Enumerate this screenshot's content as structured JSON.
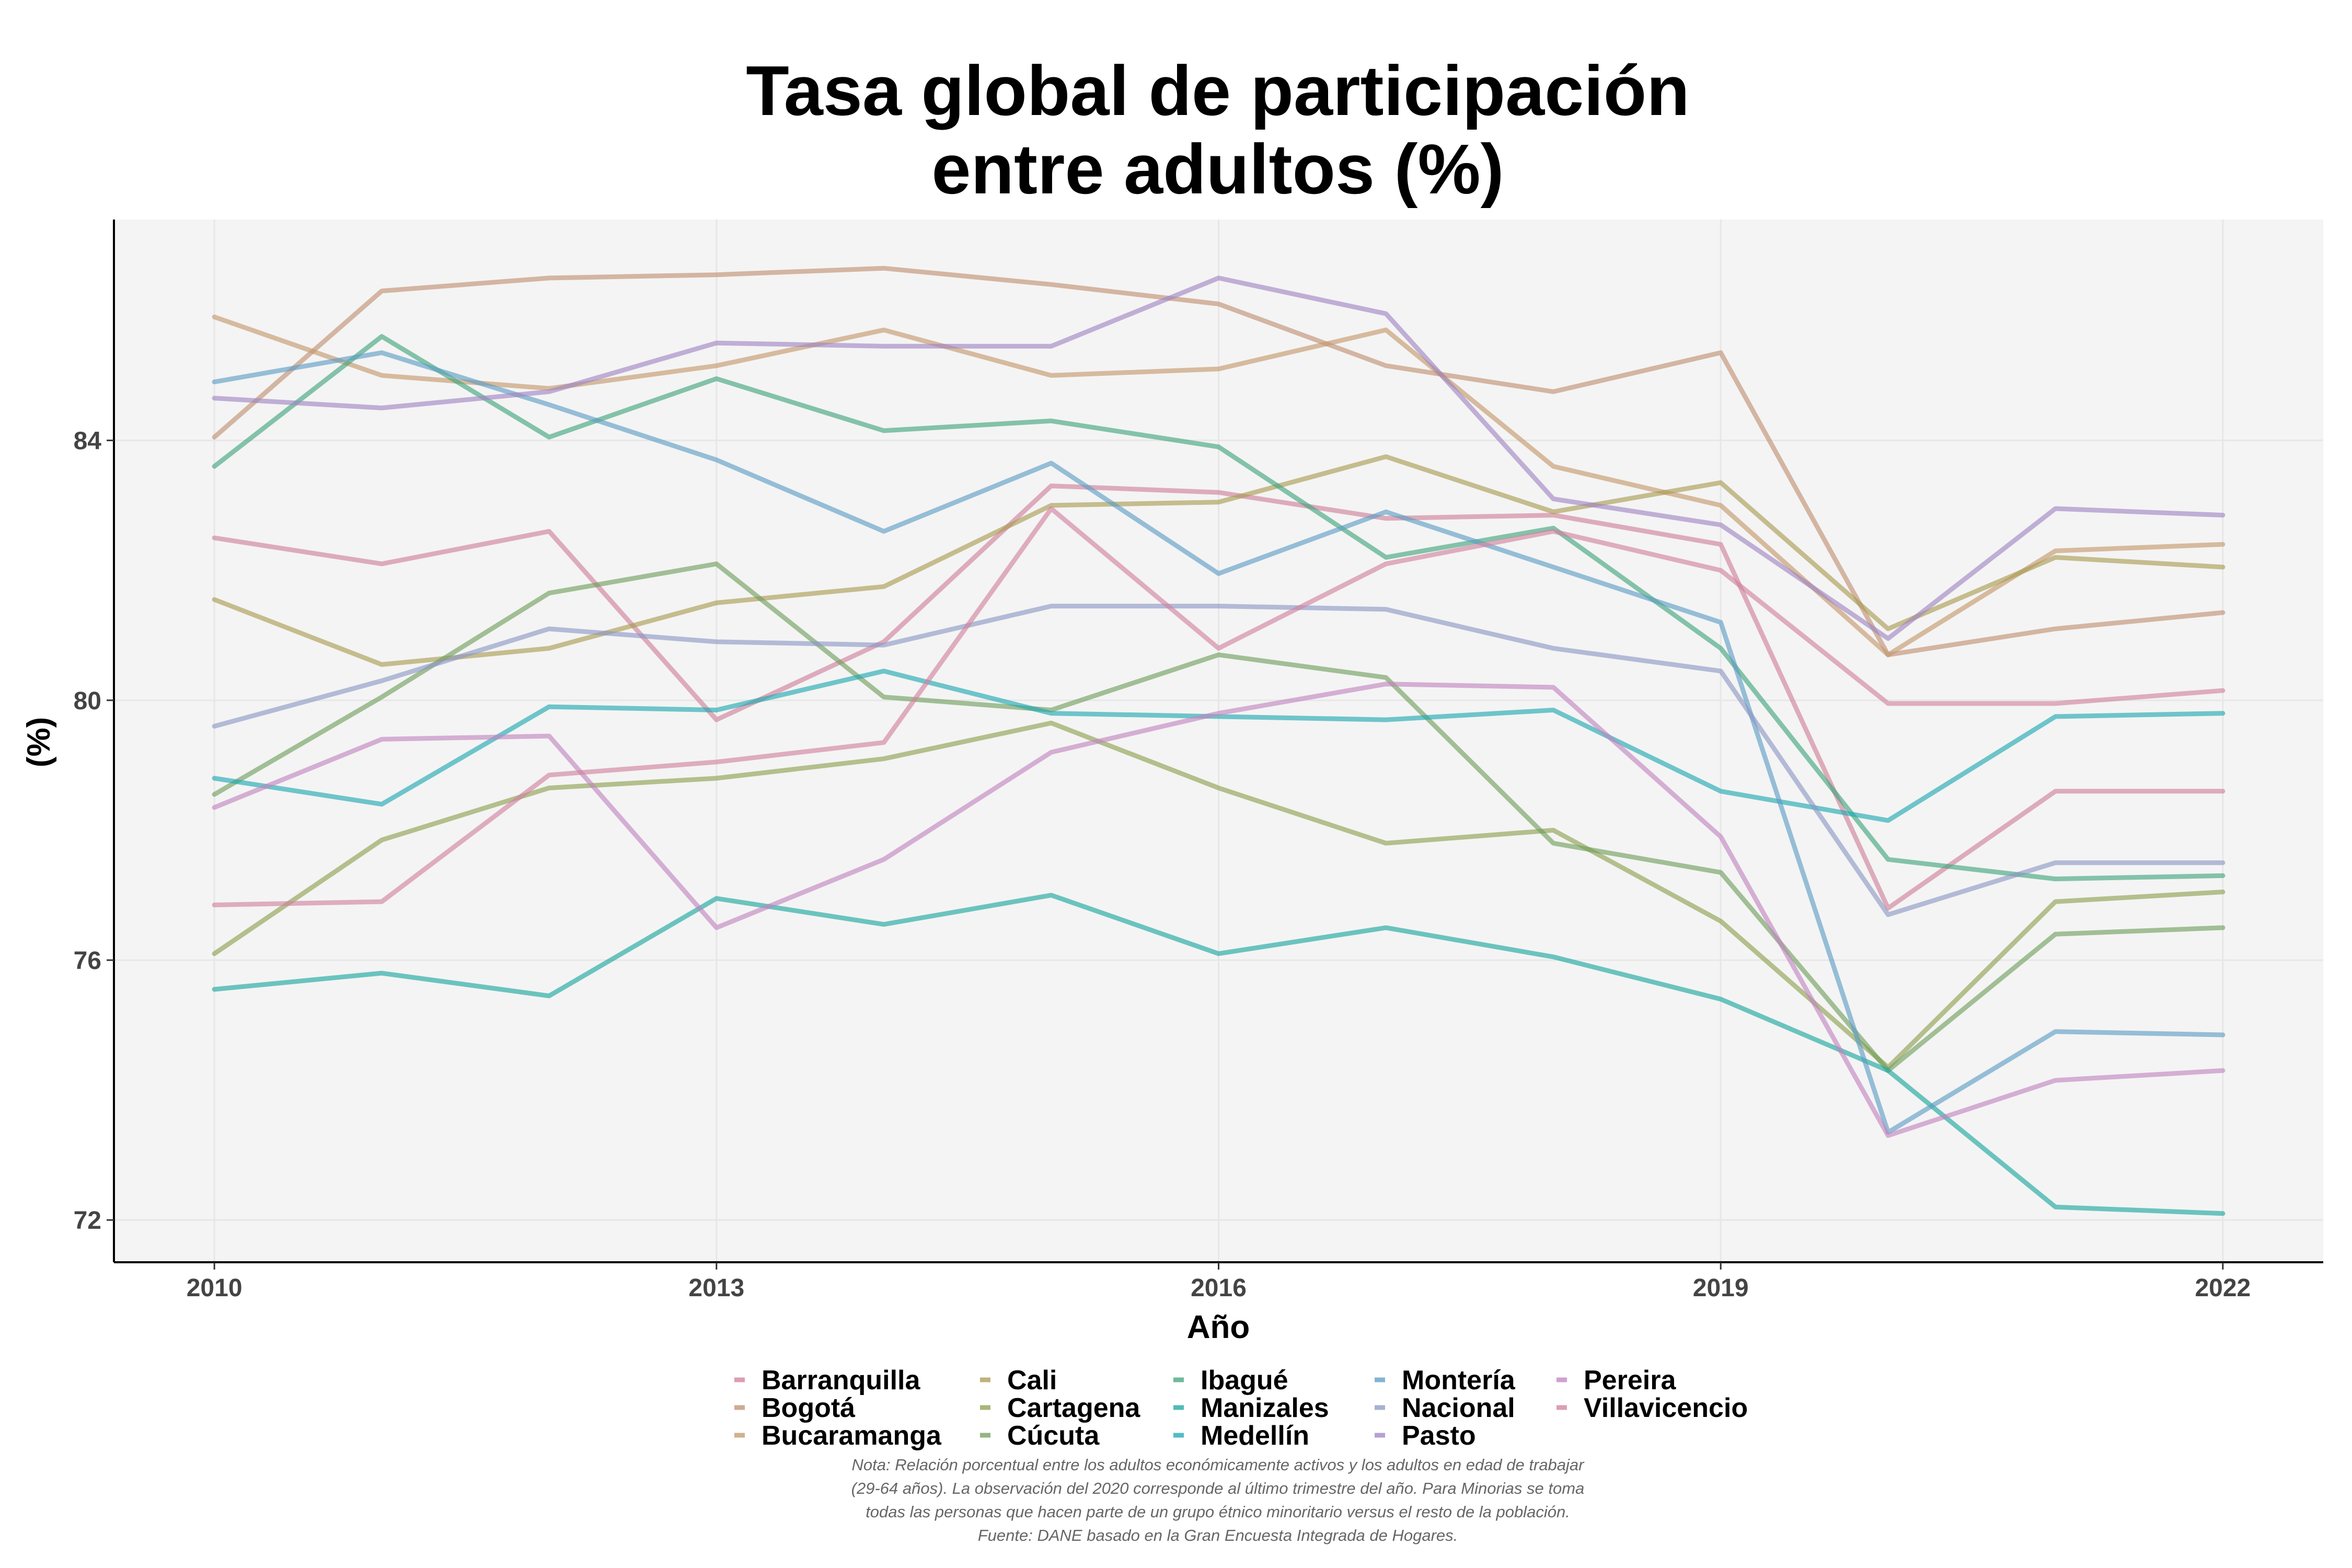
{
  "chart_data": {
    "type": "line",
    "title": [
      "Tasa global de participación",
      "entre adultos (%)"
    ],
    "xlabel": "Año",
    "ylabel": "(%)",
    "xlim": [
      2009.4,
      2022.6
    ],
    "ylim": [
      71.35,
      87.4
    ],
    "x_ticks": [
      2010,
      2013,
      2016,
      2019,
      2022
    ],
    "y_ticks": [
      72,
      76,
      80,
      84
    ],
    "grid": true,
    "legend_position": "bottom",
    "x": [
      2010,
      2011,
      2012,
      2013,
      2014,
      2015,
      2016,
      2017,
      2018,
      2019,
      2020,
      2021,
      2022
    ],
    "series": [
      {
        "name": "Barranquilla",
        "color": "#cf7e98",
        "values": [
          82.5,
          82.1,
          82.6,
          79.7,
          80.9,
          83.3,
          83.2,
          82.8,
          82.85,
          82.4,
          76.8,
          78.6,
          78.6
        ]
      },
      {
        "name": "Bogotá",
        "color": "#bf8e6f",
        "values": [
          84.05,
          86.3,
          86.5,
          86.55,
          86.65,
          86.4,
          86.1,
          85.15,
          84.75,
          85.35,
          80.7,
          81.1,
          81.35
        ]
      },
      {
        "name": "Bucaramanga",
        "color": "#c39669",
        "values": [
          85.9,
          85.0,
          84.8,
          85.15,
          85.7,
          85.0,
          85.1,
          85.7,
          83.6,
          83.0,
          80.7,
          82.3,
          82.4
        ]
      },
      {
        "name": "Cali",
        "color": "#a89a4f",
        "values": [
          81.55,
          80.55,
          80.8,
          81.5,
          81.75,
          83.0,
          83.05,
          83.75,
          82.9,
          83.35,
          81.1,
          82.2,
          82.05
        ]
      },
      {
        "name": "Cartagena",
        "color": "#8a9e4c",
        "values": [
          76.1,
          77.85,
          78.65,
          78.8,
          79.1,
          79.65,
          78.65,
          77.8,
          78.0,
          76.6,
          74.35,
          76.9,
          77.05
        ]
      },
      {
        "name": "Cúcuta",
        "color": "#6e9d5b",
        "values": [
          78.55,
          80.05,
          81.65,
          82.1,
          80.05,
          79.85,
          80.7,
          80.35,
          77.8,
          77.35,
          74.3,
          76.4,
          76.5
        ]
      },
      {
        "name": "Ibagué",
        "color": "#3ea37a",
        "values": [
          83.6,
          85.6,
          84.05,
          84.95,
          84.15,
          84.3,
          83.9,
          82.2,
          82.65,
          80.8,
          77.55,
          77.25,
          77.3
        ]
      },
      {
        "name": "Manizales",
        "color": "#17a49c",
        "values": [
          75.55,
          75.8,
          75.45,
          76.95,
          76.55,
          77.0,
          76.1,
          76.5,
          76.05,
          75.4,
          74.3,
          72.2,
          72.1
        ]
      },
      {
        "name": "Medellín",
        "color": "#1ba6b0",
        "values": [
          78.8,
          78.4,
          79.9,
          79.85,
          80.45,
          79.8,
          79.75,
          79.7,
          79.85,
          78.6,
          78.15,
          79.75,
          79.8
        ]
      },
      {
        "name": "Montería",
        "color": "#5b9bc3",
        "values": [
          84.9,
          85.35,
          84.55,
          83.7,
          82.6,
          83.65,
          81.95,
          82.9,
          82.05,
          81.2,
          73.35,
          74.9,
          74.85
        ]
      },
      {
        "name": "Nacional",
        "color": "#8996c4",
        "values": [
          79.6,
          80.3,
          81.1,
          80.9,
          80.85,
          81.45,
          81.45,
          81.4,
          80.8,
          80.45,
          76.7,
          77.5,
          77.5
        ]
      },
      {
        "name": "Pasto",
        "color": "#9e82c2",
        "values": [
          84.65,
          84.5,
          84.75,
          85.5,
          85.45,
          85.45,
          86.5,
          85.95,
          83.1,
          82.7,
          80.95,
          82.95,
          82.85
        ]
      },
      {
        "name": "Pereira",
        "color": "#c082bf",
        "values": [
          78.35,
          79.4,
          79.45,
          76.5,
          77.55,
          79.2,
          79.8,
          80.25,
          80.2,
          77.9,
          73.3,
          74.15,
          74.3
        ]
      },
      {
        "name": "Villavicencio",
        "color": "#d07f9c",
        "values": [
          76.85,
          76.9,
          78.85,
          79.05,
          79.35,
          82.95,
          80.8,
          82.1,
          82.6,
          82.0,
          79.95,
          79.95,
          80.15
        ]
      }
    ],
    "legend_columns": [
      [
        "Barranquilla",
        "Bogotá",
        "Bucaramanga"
      ],
      [
        "Cali",
        "Cartagena",
        "Cúcuta"
      ],
      [
        "Ibagué",
        "Manizales",
        "Medellín"
      ],
      [
        "Montería",
        "Nacional",
        "Pasto"
      ],
      [
        "Pereira",
        "Villavicencio"
      ]
    ],
    "note": [
      "Nota: Relación porcentual entre los adultos económicamente activos y los adultos en edad de trabajar",
      "(29-64 años). La observación del 2020 corresponde al último trimestre del año. Para Minorias se toma",
      "todas las personas que hacen parte de un grupo étnico minoritario versus el resto de la población.",
      "Fuente: DANE basado en la Gran Encuesta Integrada de Hogares."
    ]
  }
}
